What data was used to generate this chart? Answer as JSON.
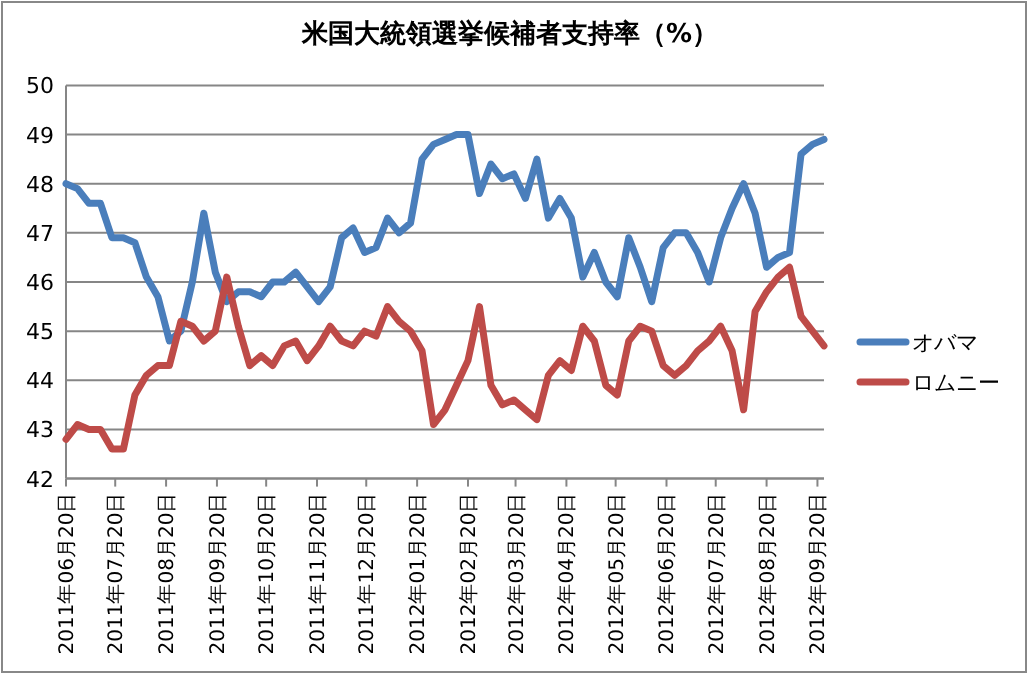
{
  "chart_data": {
    "type": "line",
    "title": "米国大統領選挙候補者支持率（%）",
    "x": [
      "2011-06-20",
      "2011-06-27",
      "2011-07-04",
      "2011-07-11",
      "2011-07-18",
      "2011-07-25",
      "2011-08-01",
      "2011-08-08",
      "2011-08-15",
      "2011-08-22",
      "2011-08-29",
      "2011-09-05",
      "2011-09-12",
      "2011-09-19",
      "2011-09-26",
      "2011-10-03",
      "2011-10-10",
      "2011-10-17",
      "2011-10-24",
      "2011-10-31",
      "2011-11-07",
      "2011-11-14",
      "2011-11-21",
      "2011-11-28",
      "2011-12-05",
      "2011-12-12",
      "2011-12-19",
      "2011-12-26",
      "2012-01-02",
      "2012-01-09",
      "2012-01-16",
      "2012-01-23",
      "2012-01-30",
      "2012-02-06",
      "2012-02-13",
      "2012-02-20",
      "2012-02-27",
      "2012-03-05",
      "2012-03-12",
      "2012-03-19",
      "2012-03-26",
      "2012-04-02",
      "2012-04-09",
      "2012-04-16",
      "2012-04-23",
      "2012-04-30",
      "2012-05-07",
      "2012-05-14",
      "2012-05-21",
      "2012-05-28",
      "2012-06-04",
      "2012-06-11",
      "2012-06-18",
      "2012-06-25",
      "2012-07-02",
      "2012-07-09",
      "2012-07-16",
      "2012-07-23",
      "2012-07-30",
      "2012-08-06",
      "2012-08-13",
      "2012-08-20",
      "2012-08-27",
      "2012-09-03",
      "2012-09-10",
      "2012-09-17",
      "2012-09-24"
    ],
    "series": [
      {
        "name": "オバマ",
        "color": "#4a7ebb",
        "values": [
          48.0,
          47.9,
          47.6,
          47.6,
          46.9,
          46.9,
          46.8,
          46.1,
          45.7,
          44.8,
          45.0,
          46.0,
          47.4,
          46.2,
          45.6,
          45.8,
          45.8,
          45.7,
          46.0,
          46.0,
          46.2,
          45.9,
          45.6,
          45.9,
          46.9,
          47.1,
          46.6,
          46.7,
          47.3,
          47.0,
          47.2,
          48.5,
          48.8,
          48.9,
          49.0,
          49.0,
          47.8,
          48.4,
          48.1,
          48.2,
          47.7,
          48.5,
          47.3,
          47.7,
          47.3,
          46.1,
          46.6,
          46.0,
          45.7,
          46.9,
          46.3,
          45.6,
          46.7,
          47.0,
          47.0,
          46.6,
          46.0,
          46.9,
          47.5,
          48.0,
          47.4,
          46.3,
          46.5,
          46.6,
          48.6,
          48.8,
          48.9
        ]
      },
      {
        "name": "ロムニー",
        "color": "#be4b48",
        "values": [
          42.8,
          43.1,
          43.0,
          43.0,
          42.6,
          42.6,
          43.7,
          44.1,
          44.3,
          44.3,
          45.2,
          45.1,
          44.8,
          45.0,
          46.1,
          45.1,
          44.3,
          44.5,
          44.3,
          44.7,
          44.8,
          44.4,
          44.7,
          45.1,
          44.8,
          44.7,
          45.0,
          44.9,
          45.5,
          45.2,
          45.0,
          44.6,
          43.1,
          43.4,
          43.9,
          44.4,
          45.5,
          43.9,
          43.5,
          43.6,
          43.4,
          43.2,
          44.1,
          44.4,
          44.2,
          45.1,
          44.8,
          43.9,
          43.7,
          44.8,
          45.1,
          45.0,
          44.3,
          44.1,
          44.3,
          44.6,
          44.8,
          45.1,
          44.6,
          43.4,
          45.4,
          45.8,
          46.1,
          46.3,
          45.3,
          45.0,
          44.7
        ]
      }
    ],
    "xlim": [
      "2011-06-20",
      "2012-09-24"
    ],
    "xticks": [
      {
        "value": "2011-06-20",
        "label": "2011年06月20日"
      },
      {
        "value": "2011-07-20",
        "label": "2011年07月20日"
      },
      {
        "value": "2011-08-20",
        "label": "2011年08月20日"
      },
      {
        "value": "2011-09-20",
        "label": "2011年09月20日"
      },
      {
        "value": "2011-10-20",
        "label": "2011年10月20日"
      },
      {
        "value": "2011-11-20",
        "label": "2011年11月20日"
      },
      {
        "value": "2011-12-20",
        "label": "2011年12月20日"
      },
      {
        "value": "2012-01-20",
        "label": "2012年01月20日"
      },
      {
        "value": "2012-02-20",
        "label": "2012年02月20日"
      },
      {
        "value": "2012-03-20",
        "label": "2012年03月20日"
      },
      {
        "value": "2012-04-20",
        "label": "2012年04月20日"
      },
      {
        "value": "2012-05-20",
        "label": "2012年05月20日"
      },
      {
        "value": "2012-06-20",
        "label": "2012年06月20日"
      },
      {
        "value": "2012-07-20",
        "label": "2012年07月20日"
      },
      {
        "value": "2012-08-20",
        "label": "2012年08月20日"
      },
      {
        "value": "2012-09-20",
        "label": "2012年09月20日"
      }
    ],
    "ylim": [
      42,
      50
    ],
    "yticks": [
      42,
      43,
      44,
      45,
      46,
      47,
      48,
      49,
      50
    ],
    "grid": "y",
    "legend": "right"
  }
}
